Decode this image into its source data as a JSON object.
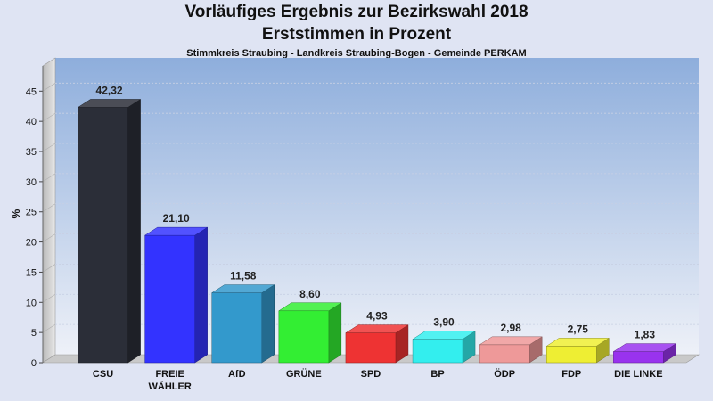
{
  "chart_data": {
    "type": "bar",
    "title": "Vorläufiges Ergebnis zur Bezirkswahl 2018",
    "subtitle": "Erststimmen in Prozent",
    "caption": "Stimmkreis Straubing - Landkreis Straubing-Bogen - Gemeinde PERKAM",
    "xlabel": "",
    "ylabel": "%",
    "ylim": [
      0,
      48
    ],
    "yticks": [
      0,
      5,
      10,
      15,
      20,
      25,
      30,
      35,
      40,
      45
    ],
    "grid": true,
    "legend": "none",
    "categories": [
      "CSU",
      "FREIE\nWÄHLER",
      "AfD",
      "GRÜNE",
      "SPD",
      "BP",
      "ÖDP",
      "FDP",
      "DIE LINKE"
    ],
    "values": [
      42.32,
      21.1,
      11.58,
      8.6,
      4.93,
      3.9,
      2.98,
      2.75,
      1.83
    ],
    "value_labels": [
      "42,32",
      "21,10",
      "11,58",
      "8,60",
      "4,93",
      "3,90",
      "2,98",
      "2,75",
      "1,83"
    ],
    "colors": [
      "#2b2e38",
      "#3333ff",
      "#3399cc",
      "#33ee33",
      "#ee3333",
      "#33eeee",
      "#ee9999",
      "#eeee33",
      "#9933ee"
    ]
  }
}
